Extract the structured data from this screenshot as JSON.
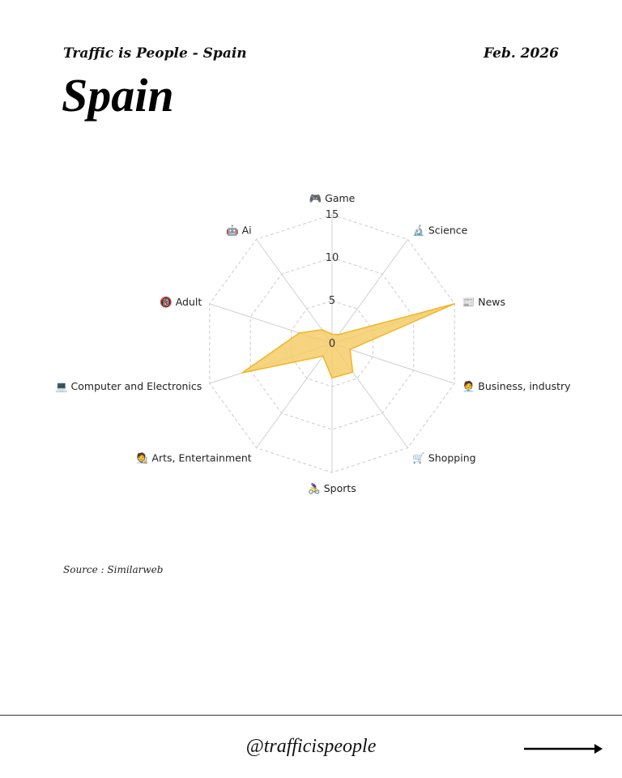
{
  "header": {
    "subtitle": "Traffic is People - Spain",
    "date": "Feb. 2026",
    "title": "Spain"
  },
  "chart_data": {
    "type": "radar",
    "categories": [
      "Game",
      "Science",
      "News",
      "Business, industry",
      "Shopping",
      "Sports",
      "Arts, Entertainment",
      "Computer and Electronics",
      "Adult",
      "Ai"
    ],
    "category_icons": [
      "🎮",
      "🔬",
      "📰",
      "🧑‍💼",
      "🛒",
      "🚴‍♀️",
      "🧑‍🎨",
      "💻",
      "🔞",
      "🤖"
    ],
    "values": [
      1.1,
      1.3,
      15,
      2.2,
      4.1,
      4,
      1.8,
      11,
      4,
      2
    ],
    "rlim": [
      0,
      15
    ],
    "ticks": [
      "0",
      "5",
      "10",
      "15"
    ],
    "grid": true,
    "fill_color": "#f5cd6a",
    "line_color": "#f2b526"
  },
  "source": "Source : Similarweb",
  "footer": {
    "handle": "@trafficispeople"
  }
}
